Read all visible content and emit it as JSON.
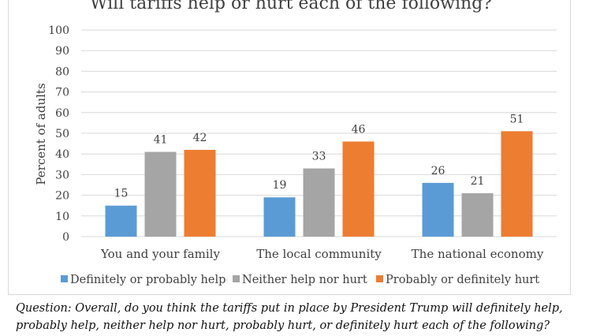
{
  "chart_data": {
    "type": "bar",
    "title": "Will tariffs help or hurt each of the following?",
    "xlabel": "",
    "ylabel": "Percent of adults",
    "ylim": [
      0,
      100
    ],
    "yticks": [
      0,
      10,
      20,
      30,
      40,
      50,
      60,
      70,
      80,
      90,
      100
    ],
    "grid": true,
    "legend": "bottom",
    "categories": [
      "You and your family",
      "The local community",
      "The national economy"
    ],
    "series": [
      {
        "name": "Definitely or probably help",
        "color": "#5b9bd5",
        "values": [
          15,
          19,
          26
        ]
      },
      {
        "name": "Neither help nor hurt",
        "color": "#a5a5a5",
        "values": [
          41,
          33,
          21
        ]
      },
      {
        "name": "Probably or definitely hurt",
        "color": "#ed7d31",
        "values": [
          42,
          46,
          51
        ]
      }
    ]
  },
  "question": {
    "label": "Question:",
    "line1": " Overall, do you think the tariffs put in place by President Trump will definitely help,",
    "line2": "probably help, neither help nor hurt, probably hurt, or definitely hurt each of the following?"
  }
}
